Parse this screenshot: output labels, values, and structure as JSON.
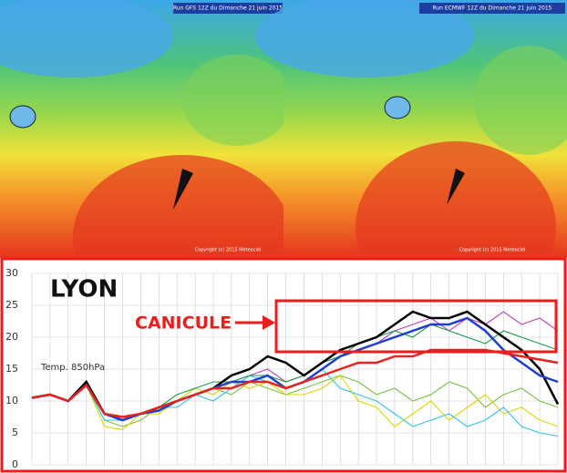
{
  "maps": [
    {
      "header": "Run GFS 12Z du Dimanche 21 juin 2015",
      "copyright": "Copyright (c) 2015 Meteociel"
    },
    {
      "header": "Run ECMWF 12Z du Dimanche 21 juin 2015",
      "copyright": "Copyright (c) 2015 Meteociel"
    }
  ],
  "chart_data": {
    "type": "line",
    "title": "LYON",
    "annotation": "CANICULE",
    "y_label": "Temp. 850hPa",
    "categories": [
      null,
      null,
      null,
      null,
      null,
      null,
      null,
      null,
      null,
      null,
      null,
      null,
      null,
      null,
      null,
      null,
      null,
      null,
      null,
      null,
      null,
      null,
      null,
      null,
      null,
      null,
      null,
      null,
      null,
      null
    ],
    "ylim": [
      0,
      30
    ],
    "yticks": [
      0,
      5,
      10,
      15,
      20,
      25,
      30
    ],
    "grid": true,
    "series": [
      {
        "color": "#7ac143",
        "values": [
          10.5,
          11,
          10,
          12.5,
          7,
          6,
          7,
          9,
          10,
          11,
          12,
          11,
          13,
          12,
          11,
          12,
          13,
          14,
          13,
          11,
          12,
          10,
          11,
          13,
          12,
          9,
          11,
          12,
          10,
          9
        ]
      },
      {
        "color": "#d8d800",
        "values": [
          10.5,
          11,
          10,
          12.5,
          6,
          5.5,
          8,
          8,
          10,
          12,
          11,
          13,
          12,
          13,
          11,
          11,
          12,
          14,
          10,
          9,
          6,
          8,
          10,
          7,
          9,
          11,
          8,
          9,
          7,
          6
        ]
      },
      {
        "color": "#33c3e8",
        "values": [
          10.5,
          11,
          10,
          12.5,
          7,
          7,
          8,
          9,
          9,
          11,
          10,
          12,
          14,
          13,
          12,
          13,
          15,
          12,
          11,
          10,
          8,
          6,
          7,
          8,
          6,
          7,
          9,
          6,
          5,
          4.5
        ]
      },
      {
        "color": "#c040c0",
        "values": [
          10.5,
          11,
          10,
          12.5,
          8,
          7,
          8,
          9,
          10,
          11,
          12,
          13,
          14,
          15,
          13,
          14,
          16,
          17,
          18,
          19,
          21,
          22,
          23,
          21,
          23,
          22,
          24,
          22,
          23,
          21
        ]
      },
      {
        "color": "#1a9e4a",
        "values": [
          10.5,
          11,
          10,
          12.5,
          8,
          7,
          8,
          9,
          11,
          12,
          13,
          13,
          14,
          14,
          13,
          14,
          16,
          17,
          19,
          20,
          21,
          20,
          22,
          21,
          20,
          19,
          21,
          20,
          19,
          18
        ]
      },
      {
        "color": "#000000",
        "values": [
          10.5,
          11,
          10,
          13,
          8,
          7,
          8,
          9,
          10,
          11,
          12,
          14,
          15,
          17,
          16,
          14,
          16,
          18,
          19,
          20,
          22,
          24,
          23,
          23,
          24,
          22,
          20,
          18,
          15,
          9.5
        ]
      },
      {
        "color": "#1f3fd0",
        "values": [
          10.5,
          11,
          10,
          12.5,
          8,
          7,
          8,
          8.5,
          10,
          11,
          12,
          13,
          13,
          14,
          12,
          13,
          15,
          17,
          18,
          19,
          20,
          21,
          22,
          22,
          23,
          21,
          18,
          16,
          14,
          13
        ]
      },
      {
        "color": "#e8231f",
        "values": [
          10.5,
          11,
          10,
          12.5,
          8,
          7.5,
          8,
          9,
          10,
          11,
          12,
          12,
          13,
          13,
          12,
          13,
          14,
          15,
          16,
          16,
          17,
          17,
          18,
          18,
          18,
          18,
          17.5,
          17,
          16.5,
          16
        ]
      }
    ]
  }
}
